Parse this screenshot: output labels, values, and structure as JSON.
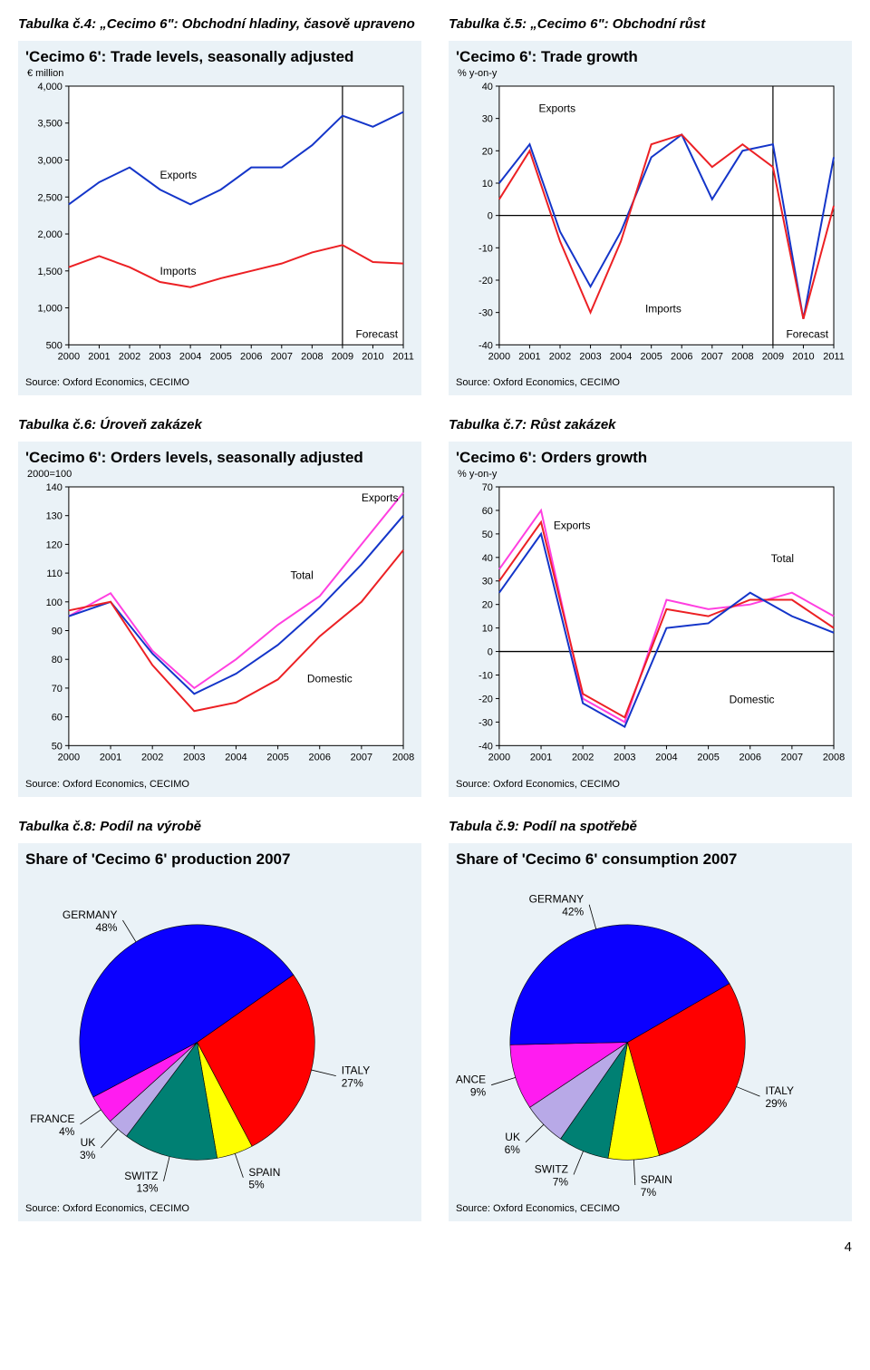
{
  "captions": {
    "c4": "Tabulka č.4: „Cecimo 6\": Obchodní hladiny, časově upraveno",
    "c5": "Tabulka č.5: „Cecimo 6\": Obchodní růst",
    "c6": "Tabulka č.6: Úroveň zakázek",
    "c7": "Tabulka č.7: Růst zakázek",
    "c8": "Tabulka č.8: Podíl na výrobě",
    "c9": "Tabula č.9: Podíl na spotřebě"
  },
  "colors": {
    "chart_bg": "#eaf2f7",
    "plot_bg": "#ffffff",
    "border": "#000000",
    "grid": "#c8c8c8",
    "blue": "#1435c9",
    "red": "#ec2024",
    "magenta": "#ff3fe0",
    "text": "#000000",
    "pie_blue": "#0b00ff",
    "pie_red": "#ff0000",
    "pie_yellow": "#ffff00",
    "pie_teal": "#008073",
    "pie_lav": "#b8a9e7",
    "pie_mag": "#ff1cf0"
  },
  "chart4": {
    "title": "'Cecimo 6': Trade levels, seasonally adjusted",
    "y_unit": "€ million",
    "source": "Source: Oxford Economics, CECIMO",
    "type": "line",
    "x_labels": [
      "2000",
      "2001",
      "2002",
      "2003",
      "2004",
      "2005",
      "2006",
      "2007",
      "2008",
      "2009",
      "2010",
      "2011"
    ],
    "y_min": 500,
    "y_max": 4000,
    "y_step": 500,
    "forecast_label": "Forecast",
    "forecast_x_index": 9,
    "series": {
      "exports": {
        "label": "Exports",
        "color": "blue",
        "width": 2,
        "values": [
          2400,
          2700,
          2900,
          2600,
          2400,
          2600,
          2900,
          2900,
          3200,
          3600,
          3450,
          3650
        ]
      },
      "imports": {
        "label": "Imports",
        "color": "red",
        "width": 2,
        "values": [
          1550,
          1700,
          1550,
          1350,
          1280,
          1400,
          1500,
          1600,
          1750,
          1850,
          1620,
          1600
        ]
      }
    },
    "label_pos": {
      "exports": [
        3.0,
        2750
      ],
      "imports": [
        3.0,
        1450
      ]
    },
    "title_fontsize": 17,
    "tick_fontsize": 11
  },
  "chart5": {
    "title": "'Cecimo 6': Trade growth",
    "y_unit": "% y-on-y",
    "source": "Source: Oxford Economics, CECIMO",
    "type": "line",
    "x_labels": [
      "2000",
      "2001",
      "2002",
      "2003",
      "2004",
      "2005",
      "2006",
      "2007",
      "2008",
      "2009",
      "2010",
      "2011"
    ],
    "y_min": -40,
    "y_max": 40,
    "y_step": 10,
    "zero_line": true,
    "forecast_label": "Forecast",
    "forecast_x_index": 9,
    "series": {
      "exports": {
        "label": "Exports",
        "color": "blue",
        "width": 2,
        "values": [
          10,
          22,
          -5,
          -22,
          -5,
          18,
          25,
          5,
          20,
          22,
          -32,
          18
        ]
      },
      "imports": {
        "label": "Imports",
        "color": "red",
        "width": 2,
        "values": [
          5,
          20,
          -8,
          -30,
          -8,
          22,
          25,
          15,
          22,
          15,
          -32,
          3
        ]
      }
    },
    "label_pos": {
      "exports": [
        1.3,
        32
      ],
      "imports": [
        4.8,
        -30
      ]
    },
    "title_fontsize": 17,
    "tick_fontsize": 11
  },
  "chart6": {
    "title": "'Cecimo 6': Orders levels, seasonally adjusted",
    "y_unit": "2000=100",
    "source": "Source: Oxford Economics, CECIMO",
    "type": "line",
    "x_labels": [
      "2000",
      "2001",
      "2002",
      "2003",
      "2004",
      "2005",
      "2006",
      "2007",
      "2008"
    ],
    "y_min": 50,
    "y_max": 140,
    "y_step": 10,
    "series": {
      "exports": {
        "label": "Exports",
        "color": "magenta",
        "width": 2,
        "values": [
          95,
          103,
          83,
          70,
          80,
          92,
          102,
          120,
          138
        ]
      },
      "total": {
        "label": "Total",
        "color": "blue",
        "width": 2,
        "values": [
          95,
          100,
          82,
          68,
          75,
          85,
          98,
          113,
          130
        ]
      },
      "domestic": {
        "label": "Domestic",
        "color": "red",
        "width": 2,
        "values": [
          97,
          100,
          78,
          62,
          65,
          73,
          88,
          100,
          118
        ]
      }
    },
    "label_pos": {
      "exports": [
        7.0,
        135
      ],
      "total": [
        5.3,
        108
      ],
      "domestic": [
        5.7,
        72
      ]
    },
    "title_fontsize": 17,
    "tick_fontsize": 11
  },
  "chart7": {
    "title": "'Cecimo 6': Orders growth",
    "y_unit": "% y-on-y",
    "source": "Source: Oxford Economics, CECIMO",
    "type": "line",
    "x_labels": [
      "2000",
      "2001",
      "2002",
      "2003",
      "2004",
      "2005",
      "2006",
      "2007",
      "2008"
    ],
    "y_min": -40,
    "y_max": 70,
    "y_step": 10,
    "zero_line": true,
    "series": {
      "exports": {
        "label": "Exports",
        "color": "magenta",
        "width": 2,
        "values": [
          35,
          60,
          -20,
          -30,
          22,
          18,
          20,
          25,
          15
        ]
      },
      "total": {
        "label": "Total",
        "color": "red",
        "width": 2,
        "values": [
          30,
          55,
          -18,
          -28,
          18,
          15,
          22,
          22,
          10
        ]
      },
      "domestic": {
        "label": "Domestic",
        "color": "blue",
        "width": 2,
        "values": [
          25,
          50,
          -22,
          -32,
          10,
          12,
          25,
          15,
          8
        ]
      }
    },
    "label_pos": {
      "exports": [
        1.3,
        52
      ],
      "total": [
        6.5,
        38
      ],
      "domestic": [
        5.5,
        -22
      ]
    },
    "title_fontsize": 17,
    "tick_fontsize": 11
  },
  "chart8": {
    "title": "Share of 'Cecimo 6' production 2007",
    "source": "Source: Oxford Economics, CECIMO",
    "type": "pie",
    "start_angle": -35,
    "slices": [
      {
        "label": "ITALY",
        "pct": 27,
        "color": "pie_red"
      },
      {
        "label": "SPAIN",
        "pct": 5,
        "color": "pie_yellow"
      },
      {
        "label": "SWITZ",
        "pct": 13,
        "color": "pie_teal"
      },
      {
        "label": "UK",
        "pct": 3,
        "color": "pie_lav"
      },
      {
        "label": "FRANCE",
        "pct": 4,
        "color": "pie_mag"
      },
      {
        "label": "GERMANY",
        "pct": 48,
        "color": "pie_blue"
      }
    ],
    "title_fontsize": 17
  },
  "chart9": {
    "title": "Share of 'Cecimo 6' consumption 2007",
    "source": "Source: Oxford Economics, CECIMO",
    "type": "pie",
    "start_angle": -30,
    "slices": [
      {
        "label": "ITALY",
        "pct": 29,
        "color": "pie_red"
      },
      {
        "label": "SPAIN",
        "pct": 7,
        "color": "pie_yellow"
      },
      {
        "label": "SWITZ",
        "pct": 7,
        "color": "pie_teal"
      },
      {
        "label": "UK",
        "pct": 6,
        "color": "pie_lav"
      },
      {
        "label": "FRANCE",
        "pct": 9,
        "color": "pie_mag"
      },
      {
        "label": "GERMANY",
        "pct": 42,
        "color": "pie_blue"
      }
    ],
    "title_fontsize": 17
  },
  "page_number": "4"
}
